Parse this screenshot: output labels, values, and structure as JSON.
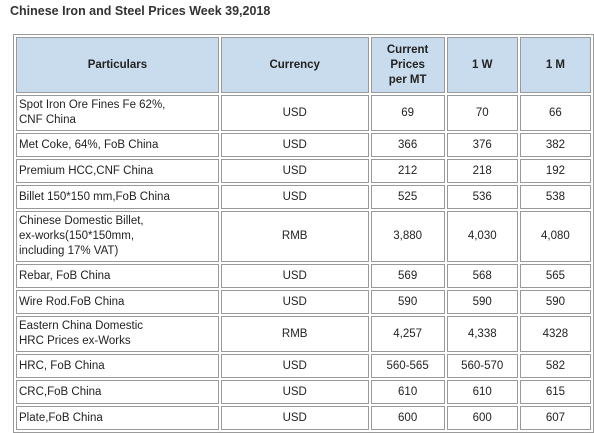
{
  "page": {
    "title": "Chinese Iron and Steel Prices Week 39,2018"
  },
  "table": {
    "headers": [
      "Particulars",
      "Currency",
      "Current\nPrices\nper MT",
      "1 W",
      "1 M"
    ],
    "rows": [
      {
        "particulars": "Spot Iron Ore Fines Fe 62%,\nCNF China",
        "currency": "USD",
        "current": "69",
        "w1": "70",
        "m1": "66"
      },
      {
        "particulars": "Met Coke, 64%, FoB China",
        "currency": "USD",
        "current": "366",
        "w1": "376",
        "m1": "382"
      },
      {
        "particulars": "Premium HCC,CNF China",
        "currency": "USD",
        "current": "212",
        "w1": "218",
        "m1": "192"
      },
      {
        "particulars": "Billet 150*150 mm,FoB China",
        "currency": "USD",
        "current": "525",
        "w1": "536",
        "m1": "538"
      },
      {
        "particulars": "Chinese Domestic Billet,\nex-works(150*150mm,\nincluding 17% VAT)",
        "currency": "RMB",
        "current": "3,880",
        "w1": "4,030",
        "m1": "4,080"
      },
      {
        "particulars": "Rebar, FoB China",
        "currency": "USD",
        "current": "569",
        "w1": "568",
        "m1": "565"
      },
      {
        "particulars": "Wire Rod.FoB China",
        "currency": "USD",
        "current": "590",
        "w1": "590",
        "m1": "590"
      },
      {
        "particulars": "Eastern China Domestic\nHRC Prices ex-Works",
        "currency": "RMB",
        "current": "4,257",
        "w1": "4,338",
        "m1": "4328"
      },
      {
        "particulars": "HRC, FoB China",
        "currency": "USD",
        "current": "560-565",
        "w1": "560-570",
        "m1": "582"
      },
      {
        "particulars": "CRC,FoB China",
        "currency": "USD",
        "current": "610",
        "w1": "610",
        "m1": "615"
      },
      {
        "particulars": "Plate,FoB China",
        "currency": "USD",
        "current": "600",
        "w1": "600",
        "m1": "607"
      }
    ]
  }
}
